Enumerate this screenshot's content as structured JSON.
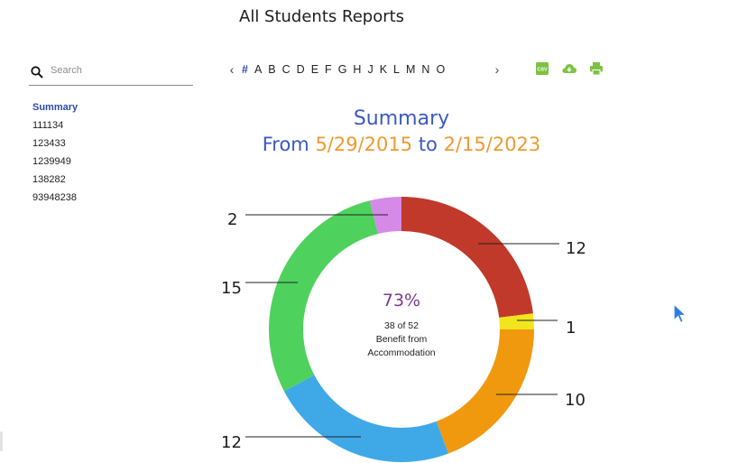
{
  "page": {
    "title": "All Students Reports"
  },
  "search": {
    "placeholder": "Search",
    "value": ""
  },
  "sidebar": {
    "items": [
      {
        "label": "Summary",
        "active": true
      },
      {
        "label": "111134"
      },
      {
        "label": "123433"
      },
      {
        "label": "1239949"
      },
      {
        "label": "138282"
      },
      {
        "label": "93948238"
      }
    ]
  },
  "alphabet": {
    "prev_icon": "chevron-left-icon",
    "next_icon": "chevron-right-icon",
    "letters": [
      "#",
      "A",
      "B",
      "C",
      "D",
      "E",
      "F",
      "G",
      "H",
      "J",
      "K",
      "L",
      "M",
      "N",
      "O"
    ]
  },
  "toolbar": {
    "icons": [
      "csv-icon",
      "cloud-download-icon",
      "print-icon"
    ],
    "csv_text": "CSV",
    "color": "#7cc242"
  },
  "summary": {
    "title": "Summary",
    "from_label": "From",
    "from_date": "5/29/2015",
    "to_label": "to",
    "to_date": "2/15/2023",
    "center_percent": "73%",
    "center_count": "38 of 52",
    "center_line1": "Benefit from",
    "center_line2": "Accommodation"
  },
  "chart_data": {
    "type": "pie",
    "donut": true,
    "total": 52,
    "values": [
      12,
      1,
      10,
      12,
      15,
      2
    ],
    "colors": [
      "#c0392b",
      "#f2e51d",
      "#f0990f",
      "#3fa9e8",
      "#4fd15e",
      "#d58ae8"
    ],
    "labels": [
      "12",
      "1",
      "10",
      "12",
      "15",
      "2"
    ]
  }
}
